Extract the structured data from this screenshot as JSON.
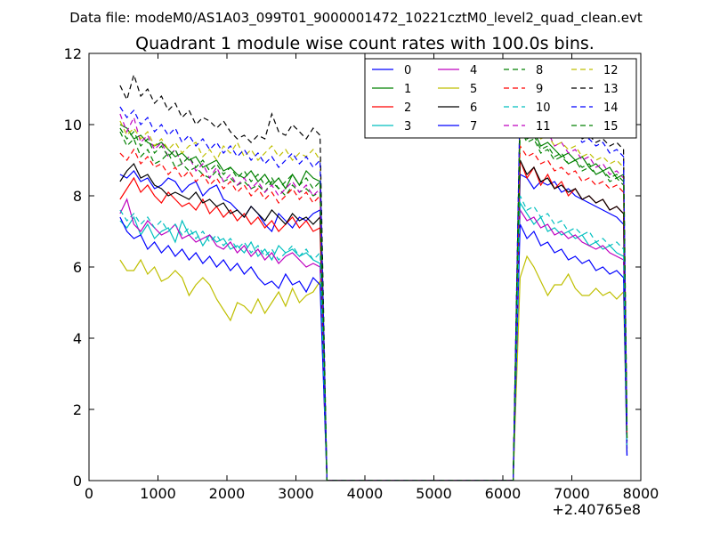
{
  "chart_data": {
    "type": "line",
    "suptitle": "Data file: modeM0/AS1A03_099T01_9000001472_10221cztM0_level2_quad_clean.evt",
    "title": "Quadrant 1 module wise count rates with 100.0s bins.",
    "xlabel": "",
    "ylabel": "",
    "x_offset_label": "+2.40765e8",
    "xlim": [
      0,
      8000
    ],
    "ylim": [
      0,
      12
    ],
    "xticks": [
      0,
      1000,
      2000,
      3000,
      4000,
      5000,
      6000,
      7000,
      8000
    ],
    "yticks": [
      0,
      2,
      4,
      6,
      8,
      10,
      12
    ],
    "legend": {
      "placement": "top-right",
      "columns": 4
    },
    "segments": {
      "seg1_x": {
        "start": 450,
        "step": 100,
        "count": 30
      },
      "gap": {
        "x_start": 3450,
        "x_end": 6150,
        "value": 0
      },
      "seg2_x": {
        "start": 6250,
        "step": 100,
        "count": 16
      }
    },
    "series": [
      {
        "name": "0",
        "color": "#0000ff",
        "dash": "solid",
        "seg1": [
          8.6,
          8.5,
          8.7,
          8.4,
          8.5,
          8.2,
          8.3,
          8.5,
          8.4,
          8.1,
          8.3,
          8.4,
          8.0,
          8.2,
          8.3,
          7.9,
          7.8,
          7.6,
          7.4,
          7.7,
          7.5,
          7.2,
          7.0,
          7.5,
          7.3,
          7.1,
          7.4,
          7.3,
          7.5,
          7.6
        ],
        "seg2": [
          8.6,
          8.5,
          8.2,
          8.4,
          8.3,
          8.4,
          8.1,
          8.2,
          8.0,
          7.9,
          7.8,
          7.7,
          7.6,
          7.5,
          7.4,
          7.2
        ],
        "end": 0.7
      },
      {
        "name": "1",
        "color": "#008000",
        "dash": "solid",
        "seg1": [
          10.0,
          9.9,
          9.6,
          9.7,
          9.5,
          9.4,
          9.5,
          9.3,
          9.1,
          9.2,
          9.0,
          9.1,
          8.8,
          8.9,
          9.0,
          8.7,
          8.8,
          8.6,
          8.5,
          8.7,
          8.4,
          8.6,
          8.3,
          8.5,
          8.2,
          8.6,
          8.3,
          8.7,
          8.5,
          8.4
        ],
        "seg2": [
          10.2,
          9.6,
          9.8,
          9.4,
          9.5,
          9.3,
          9.1,
          9.2,
          9.0,
          9.1,
          8.8,
          8.9,
          8.7,
          8.8,
          8.5,
          8.6
        ],
        "end": 1.2
      },
      {
        "name": "2",
        "color": "#ff0000",
        "dash": "solid",
        "seg1": [
          7.9,
          8.2,
          8.5,
          8.1,
          8.3,
          8.0,
          7.8,
          8.1,
          7.9,
          7.7,
          7.8,
          7.6,
          7.9,
          7.5,
          7.7,
          7.4,
          7.6,
          7.3,
          7.5,
          7.2,
          7.4,
          7.1,
          7.3,
          7.0,
          7.2,
          7.4,
          7.1,
          7.3,
          7.0,
          7.1
        ],
        "seg2": [
          9.0,
          8.5,
          8.8,
          8.3,
          8.6,
          8.2,
          8.4,
          8.0,
          8.2,
          7.9,
          8.0,
          7.8,
          7.9,
          7.6,
          7.7,
          7.5
        ],
        "end": 1.0
      },
      {
        "name": "3",
        "color": "#00bfbf",
        "dash": "solid",
        "seg1": [
          7.3,
          7.1,
          7.4,
          6.9,
          7.2,
          6.8,
          7.0,
          7.1,
          6.7,
          7.3,
          6.9,
          7.0,
          6.6,
          6.9,
          6.7,
          6.8,
          6.5,
          6.6,
          6.4,
          6.7,
          6.3,
          6.5,
          6.2,
          6.6,
          6.4,
          6.5,
          6.3,
          6.4,
          6.2,
          6.1
        ],
        "seg2": [
          7.8,
          7.5,
          7.2,
          7.4,
          7.0,
          7.1,
          6.9,
          7.0,
          6.8,
          6.9,
          6.6,
          6.7,
          6.5,
          6.6,
          6.4,
          6.3
        ],
        "end": 0.9
      },
      {
        "name": "4",
        "color": "#bf00bf",
        "dash": "solid",
        "seg1": [
          7.5,
          7.9,
          7.2,
          7.0,
          7.3,
          7.1,
          6.9,
          7.0,
          7.2,
          6.8,
          6.9,
          6.7,
          6.8,
          6.9,
          6.6,
          6.5,
          6.7,
          6.4,
          6.6,
          6.3,
          6.5,
          6.2,
          6.4,
          6.1,
          6.3,
          6.4,
          6.2,
          6.0,
          6.1,
          6.0
        ],
        "seg2": [
          7.6,
          7.3,
          7.4,
          7.1,
          7.2,
          6.9,
          7.0,
          6.8,
          6.9,
          6.7,
          6.6,
          6.5,
          6.6,
          6.4,
          6.3,
          6.2
        ],
        "end": 0.9
      },
      {
        "name": "5",
        "color": "#bfbf00",
        "dash": "solid",
        "seg1": [
          6.2,
          5.9,
          5.9,
          6.2,
          5.8,
          6.0,
          5.6,
          5.7,
          5.9,
          5.7,
          5.2,
          5.5,
          5.7,
          5.5,
          5.1,
          4.8,
          4.5,
          5.0,
          4.9,
          4.7,
          5.1,
          4.7,
          5.0,
          5.3,
          4.9,
          5.4,
          5.0,
          5.2,
          5.3,
          5.6
        ],
        "seg2": [
          5.7,
          6.3,
          6.0,
          5.6,
          5.2,
          5.5,
          5.5,
          5.8,
          5.4,
          5.2,
          5.2,
          5.4,
          5.2,
          5.3,
          5.1,
          5.3
        ],
        "end": 0.8
      },
      {
        "name": "6",
        "color": "#000000",
        "dash": "solid",
        "seg1": [
          8.4,
          8.7,
          8.9,
          8.5,
          8.6,
          8.3,
          8.2,
          8.0,
          8.1,
          8.0,
          7.9,
          8.1,
          7.8,
          7.9,
          7.7,
          7.8,
          7.5,
          7.6,
          7.4,
          7.7,
          7.5,
          7.3,
          7.6,
          7.4,
          7.2,
          7.5,
          7.3,
          7.4,
          7.2,
          7.4
        ],
        "seg2": [
          9.0,
          8.6,
          8.8,
          8.4,
          8.5,
          8.2,
          8.3,
          8.1,
          8.2,
          7.9,
          8.0,
          7.8,
          7.9,
          7.6,
          7.7,
          7.5
        ],
        "end": 1.1
      },
      {
        "name": "7",
        "color": "#0000ff",
        "dash": "solid",
        "seg1": [
          7.4,
          7.0,
          6.8,
          6.9,
          6.5,
          6.7,
          6.4,
          6.6,
          6.3,
          6.5,
          6.2,
          6.4,
          6.1,
          6.3,
          6.0,
          6.2,
          5.9,
          6.1,
          5.8,
          6.0,
          5.7,
          5.5,
          5.6,
          5.4,
          5.8,
          5.5,
          5.6,
          5.3,
          5.7,
          5.5
        ],
        "seg2": [
          7.2,
          6.8,
          7.0,
          6.6,
          6.7,
          6.4,
          6.5,
          6.2,
          6.3,
          6.1,
          6.2,
          5.9,
          6.0,
          5.8,
          5.9,
          5.7
        ],
        "end": 0.7
      },
      {
        "name": "8",
        "color": "#008000",
        "dash": "dashed",
        "seg1": [
          9.8,
          9.4,
          9.6,
          9.1,
          9.3,
          8.9,
          9.0,
          9.2,
          8.8,
          8.9,
          8.7,
          8.8,
          8.6,
          8.5,
          8.7,
          8.4,
          8.5,
          8.3,
          8.4,
          8.2,
          8.3,
          8.1,
          8.4,
          8.2,
          8.0,
          8.3,
          8.1,
          8.2,
          8.0,
          8.1
        ],
        "seg2": [
          9.9,
          9.5,
          9.6,
          9.2,
          9.3,
          9.0,
          9.1,
          8.9,
          9.0,
          8.7,
          8.8,
          8.6,
          8.7,
          8.4,
          8.5,
          8.3
        ],
        "end": 1.3
      },
      {
        "name": "9",
        "color": "#ff0000",
        "dash": "dashed",
        "seg1": [
          9.2,
          9.0,
          9.3,
          8.9,
          9.1,
          8.8,
          8.9,
          8.6,
          8.8,
          8.5,
          8.7,
          8.4,
          8.6,
          8.3,
          8.5,
          8.2,
          8.4,
          8.1,
          8.3,
          8.0,
          8.2,
          7.9,
          8.1,
          7.8,
          8.0,
          8.2,
          7.9,
          8.1,
          7.8,
          8.0
        ],
        "seg2": [
          9.4,
          9.1,
          9.2,
          8.9,
          9.0,
          8.7,
          8.8,
          8.6,
          8.7,
          8.4,
          8.5,
          8.3,
          8.4,
          8.2,
          8.3,
          8.1
        ],
        "end": 1.2
      },
      {
        "name": "10",
        "color": "#00bfbf",
        "dash": "dashed",
        "seg1": [
          7.6,
          7.3,
          7.5,
          7.2,
          7.4,
          7.1,
          7.3,
          7.0,
          7.2,
          6.9,
          7.1,
          6.8,
          7.0,
          6.7,
          6.9,
          6.6,
          6.8,
          6.5,
          6.7,
          6.4,
          6.6,
          6.3,
          6.5,
          6.2,
          6.4,
          6.6,
          6.3,
          6.5,
          6.2,
          6.4
        ],
        "seg2": [
          8.0,
          7.6,
          7.7,
          7.4,
          7.5,
          7.2,
          7.3,
          7.0,
          7.1,
          6.9,
          7.0,
          6.7,
          6.8,
          6.6,
          6.7,
          6.5
        ],
        "end": 1.0
      },
      {
        "name": "11",
        "color": "#bf00bf",
        "dash": "dashed",
        "seg1": [
          10.3,
          9.8,
          10.2,
          9.5,
          9.7,
          9.3,
          9.5,
          9.1,
          9.3,
          8.9,
          9.1,
          8.7,
          8.9,
          8.5,
          8.8,
          8.4,
          8.6,
          8.3,
          8.5,
          8.2,
          8.4,
          8.1,
          8.3,
          8.0,
          8.2,
          8.4,
          8.1,
          8.3,
          8.0,
          8.2
        ],
        "seg2": [
          10.5,
          10.0,
          10.1,
          9.7,
          9.8,
          9.4,
          9.5,
          9.2,
          9.3,
          9.0,
          9.1,
          8.8,
          8.9,
          8.6,
          8.7,
          8.5
        ],
        "end": 1.4
      },
      {
        "name": "12",
        "color": "#bfbf00",
        "dash": "dashed",
        "seg1": [
          10.1,
          9.7,
          9.9,
          9.6,
          9.8,
          9.4,
          9.6,
          9.3,
          9.5,
          9.2,
          9.4,
          9.5,
          9.1,
          9.3,
          9.0,
          9.4,
          9.2,
          9.5,
          9.1,
          9.3,
          9.0,
          9.2,
          9.4,
          9.1,
          9.3,
          9.0,
          9.2,
          9.1,
          9.3,
          9.0
        ],
        "seg2": [
          10.2,
          9.8,
          10.0,
          9.6,
          9.7,
          9.4,
          9.5,
          9.3,
          9.4,
          9.1,
          9.2,
          9.0,
          9.1,
          8.9,
          9.0,
          8.8
        ],
        "end": 1.5
      },
      {
        "name": "13",
        "color": "#000000",
        "dash": "dashed",
        "seg1": [
          11.1,
          10.7,
          11.4,
          10.8,
          11.0,
          10.6,
          10.8,
          10.4,
          10.6,
          10.2,
          10.4,
          10.0,
          10.2,
          10.1,
          9.9,
          10.1,
          9.8,
          9.6,
          9.7,
          9.5,
          9.7,
          9.6,
          10.3,
          9.8,
          9.7,
          10.0,
          9.8,
          9.6,
          9.9,
          9.7
        ],
        "seg2": [
          10.6,
          10.3,
          10.4,
          10.1,
          10.2,
          9.9,
          10.0,
          9.8,
          9.9,
          9.6,
          9.7,
          9.5,
          9.6,
          9.4,
          9.5,
          9.3
        ],
        "end": 1.6
      },
      {
        "name": "14",
        "color": "#0000ff",
        "dash": "dashed",
        "seg1": [
          10.5,
          10.2,
          10.4,
          10.0,
          10.2,
          9.8,
          10.0,
          9.7,
          9.9,
          9.5,
          9.7,
          9.4,
          9.6,
          9.3,
          9.5,
          9.2,
          9.4,
          9.1,
          9.3,
          9.0,
          9.2,
          8.9,
          9.1,
          8.8,
          9.0,
          9.2,
          8.9,
          9.1,
          8.8,
          9.0
        ],
        "seg2": [
          10.8,
          10.4,
          10.5,
          10.1,
          10.2,
          9.9,
          10.0,
          9.7,
          9.8,
          9.5,
          9.6,
          9.4,
          9.5,
          9.2,
          9.3,
          9.1
        ],
        "end": 1.4
      },
      {
        "name": "15",
        "color": "#008000",
        "dash": "dashed",
        "seg1": [
          9.9,
          9.6,
          9.8,
          9.4,
          9.6,
          9.2,
          9.4,
          9.1,
          9.3,
          8.9,
          9.1,
          8.8,
          9.0,
          8.7,
          8.9,
          8.6,
          8.8,
          8.5,
          8.7,
          8.4,
          8.6,
          8.3,
          8.5,
          8.2,
          8.4,
          8.6,
          8.3,
          8.5,
          8.2,
          8.4
        ],
        "seg2": [
          10.0,
          9.6,
          9.7,
          9.3,
          9.4,
          9.1,
          9.2,
          8.9,
          9.0,
          8.8,
          8.9,
          8.6,
          8.7,
          8.5,
          8.6,
          8.4
        ],
        "end": 1.2
      }
    ]
  }
}
